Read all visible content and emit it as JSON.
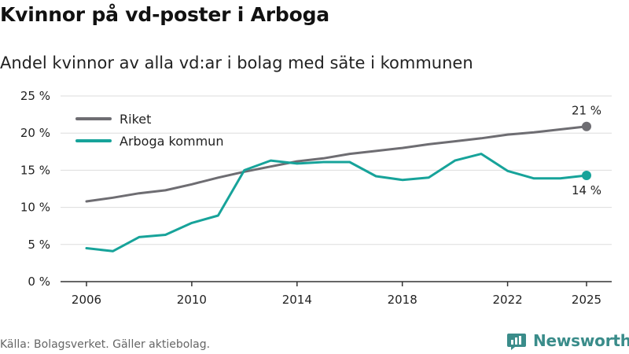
{
  "title": "Kvinnor på vd-poster i Arboga",
  "subtitle": "Andel kvinnor av alla vd:ar i bolag med säte i kommunen",
  "source": "Källa: Bolagsverket. Gäller aktiebolag.",
  "brand": {
    "name": "Newsworthy",
    "icon": "newsworthy-logo-icon"
  },
  "colors": {
    "riket": "#6e6d72",
    "arboga": "#17a39a",
    "grid": "#dddddd",
    "axis": "#333333"
  },
  "chart_data": {
    "type": "line",
    "title": "Kvinnor på vd-poster i Arboga",
    "subtitle": "Andel kvinnor av alla vd:ar i bolag med säte i kommunen",
    "xlabel": "",
    "ylabel": "",
    "x": [
      2006,
      2007,
      2008,
      2009,
      2010,
      2011,
      2012,
      2013,
      2014,
      2015,
      2016,
      2017,
      2018,
      2019,
      2020,
      2021,
      2022,
      2023,
      2024,
      2025
    ],
    "xlim": [
      2006,
      2025
    ],
    "ylim": [
      0,
      25
    ],
    "x_ticks": [
      2006,
      2010,
      2014,
      2018,
      2022,
      2025
    ],
    "x_tick_labels": [
      "2006",
      "2010",
      "2014",
      "2018",
      "2022",
      "2025"
    ],
    "y_ticks": [
      0,
      5,
      10,
      15,
      20,
      25
    ],
    "y_tick_labels": [
      "0 %",
      "5 %",
      "10 %",
      "15 %",
      "20 %",
      "25 %"
    ],
    "grid": true,
    "legend": "top-left",
    "series": [
      {
        "name": "Riket",
        "color": "#6e6d72",
        "values": [
          10.8,
          11.3,
          11.9,
          12.3,
          13.1,
          14.0,
          14.8,
          15.5,
          16.2,
          16.6,
          17.2,
          17.6,
          18.0,
          18.5,
          18.9,
          19.3,
          19.8,
          20.1,
          20.5,
          20.9
        ],
        "end_label": "21 %"
      },
      {
        "name": "Arboga kommun",
        "color": "#17a39a",
        "values": [
          4.5,
          4.1,
          6.0,
          6.3,
          7.9,
          8.9,
          15.0,
          16.3,
          15.9,
          16.1,
          16.1,
          14.2,
          13.7,
          14.0,
          16.3,
          17.2,
          14.9,
          13.9,
          13.9,
          14.3
        ],
        "end_label": "14 %"
      }
    ]
  }
}
